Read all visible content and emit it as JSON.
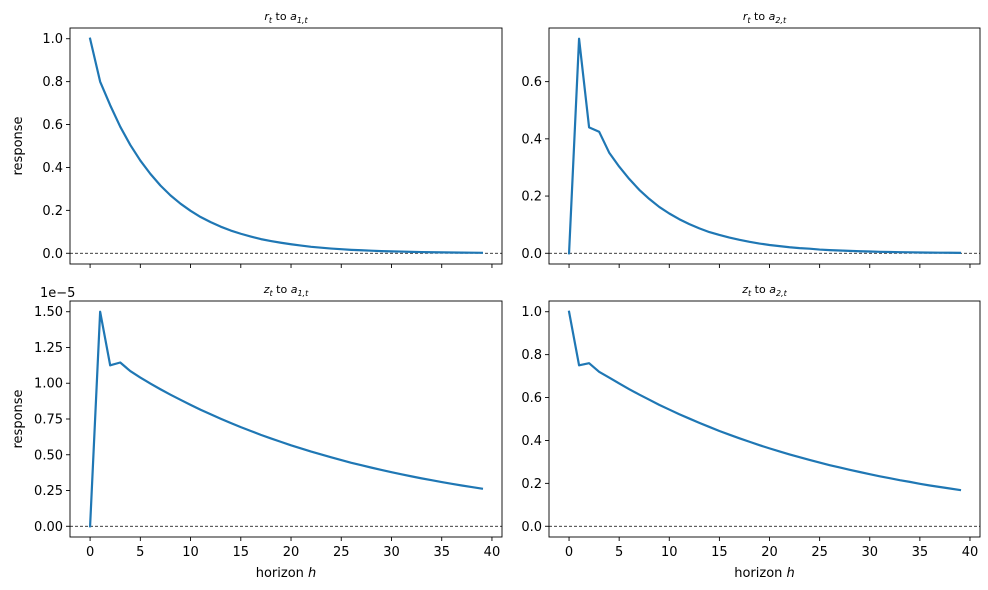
{
  "chart_data": [
    {
      "type": "line",
      "title": "r_t to a_{1,t}",
      "title_parts": {
        "var": "r",
        "var_sub": "t",
        "word": "to",
        "shock": "a",
        "shock_sub": "1,t"
      },
      "xlabel": "",
      "ylabel": "response",
      "xlim": [
        -2,
        41
      ],
      "ylim": [
        -0.05,
        1.05
      ],
      "xticks": [
        0,
        5,
        10,
        15,
        20,
        25,
        30,
        35,
        40
      ],
      "xtick_labels_shown": false,
      "yticks": [
        0.0,
        0.2,
        0.4,
        0.6,
        0.8,
        1.0
      ],
      "ytick_labels": [
        "0.0",
        "0.2",
        "0.4",
        "0.6",
        "0.8",
        "1.0"
      ],
      "zero_line": true,
      "grid": false,
      "series_color": "#1f77b4",
      "x": [
        0,
        1,
        2,
        3,
        4,
        5,
        6,
        7,
        8,
        9,
        10,
        11,
        12,
        13,
        14,
        15,
        16,
        17,
        18,
        19,
        20,
        21,
        22,
        23,
        24,
        25,
        26,
        27,
        28,
        29,
        30,
        31,
        32,
        33,
        34,
        35,
        36,
        37,
        38,
        39
      ],
      "values": [
        1.0,
        0.8,
        0.69,
        0.59,
        0.505,
        0.432,
        0.37,
        0.316,
        0.27,
        0.231,
        0.198,
        0.169,
        0.145,
        0.124,
        0.106,
        0.091,
        0.078,
        0.066,
        0.057,
        0.049,
        0.042,
        0.036,
        0.03,
        0.026,
        0.022,
        0.019,
        0.016,
        0.014,
        0.012,
        0.01,
        0.009,
        0.008,
        0.0065,
        0.0056,
        0.0048,
        0.0041,
        0.0035,
        0.003,
        0.0026,
        0.0022
      ]
    },
    {
      "type": "line",
      "title": "r_t to a_{2,t}",
      "title_parts": {
        "var": "r",
        "var_sub": "t",
        "word": "to",
        "shock": "a",
        "shock_sub": "2,t"
      },
      "xlabel": "",
      "ylabel": "",
      "xlim": [
        -2,
        41
      ],
      "ylim": [
        -0.0375,
        0.7875
      ],
      "xticks": [
        0,
        5,
        10,
        15,
        20,
        25,
        30,
        35,
        40
      ],
      "xtick_labels_shown": false,
      "yticks": [
        0.0,
        0.2,
        0.4,
        0.6
      ],
      "ytick_labels": [
        "0.0",
        "0.2",
        "0.4",
        "0.6"
      ],
      "zero_line": true,
      "grid": false,
      "series_color": "#1f77b4",
      "x": [
        0,
        1,
        2,
        3,
        4,
        5,
        6,
        7,
        8,
        9,
        10,
        11,
        12,
        13,
        14,
        15,
        16,
        17,
        18,
        19,
        20,
        21,
        22,
        23,
        24,
        25,
        26,
        27,
        28,
        29,
        30,
        31,
        32,
        33,
        34,
        35,
        36,
        37,
        38,
        39
      ],
      "values": [
        0.0,
        0.75,
        0.44,
        0.425,
        0.352,
        0.303,
        0.26,
        0.222,
        0.19,
        0.162,
        0.139,
        0.119,
        0.102,
        0.087,
        0.074,
        0.064,
        0.055,
        0.047,
        0.04,
        0.034,
        0.029,
        0.025,
        0.021,
        0.018,
        0.016,
        0.013,
        0.011,
        0.0097,
        0.0083,
        0.0071,
        0.0061,
        0.0052,
        0.0045,
        0.0038,
        0.0033,
        0.0028,
        0.0024,
        0.0021,
        0.0018,
        0.0015
      ]
    },
    {
      "type": "line",
      "title": "z_t to a_{1,t}",
      "title_parts": {
        "var": "z",
        "var_sub": "t",
        "word": "to",
        "shock": "a",
        "shock_sub": "1,t"
      },
      "xlabel": "horizon h",
      "xlabel_parts": {
        "text": "horizon",
        "var": "h"
      },
      "ylabel": "response",
      "offset_text": "1e−5",
      "xlim": [
        -2,
        41
      ],
      "ylim": [
        -0.075,
        1.575
      ],
      "xticks": [
        0,
        5,
        10,
        15,
        20,
        25,
        30,
        35,
        40
      ],
      "xtick_labels": [
        "0",
        "5",
        "10",
        "15",
        "20",
        "25",
        "30",
        "35",
        "40"
      ],
      "xtick_labels_shown": true,
      "yticks": [
        0.0,
        0.25,
        0.5,
        0.75,
        1.0,
        1.25,
        1.5
      ],
      "ytick_labels": [
        "0.00",
        "0.25",
        "0.50",
        "0.75",
        "1.00",
        "1.25",
        "1.50"
      ],
      "zero_line": true,
      "grid": false,
      "series_color": "#1f77b4",
      "x": [
        0,
        1,
        2,
        3,
        4,
        5,
        6,
        7,
        8,
        9,
        10,
        11,
        12,
        13,
        14,
        15,
        16,
        17,
        18,
        19,
        20,
        21,
        22,
        23,
        24,
        25,
        26,
        27,
        28,
        29,
        30,
        31,
        32,
        33,
        34,
        35,
        36,
        37,
        38,
        39
      ],
      "values": [
        0.0,
        1.5,
        1.125,
        1.145,
        1.085,
        1.04,
        0.998,
        0.958,
        0.92,
        0.884,
        0.849,
        0.815,
        0.783,
        0.752,
        0.722,
        0.693,
        0.666,
        0.639,
        0.614,
        0.59,
        0.566,
        0.544,
        0.522,
        0.502,
        0.482,
        0.463,
        0.444,
        0.427,
        0.41,
        0.394,
        0.378,
        0.363,
        0.349,
        0.335,
        0.322,
        0.309,
        0.297,
        0.285,
        0.274,
        0.263
      ]
    },
    {
      "type": "line",
      "title": "z_t to a_{2,t}",
      "title_parts": {
        "var": "z",
        "var_sub": "t",
        "word": "to",
        "shock": "a",
        "shock_sub": "2,t"
      },
      "xlabel": "horizon h",
      "xlabel_parts": {
        "text": "horizon",
        "var": "h"
      },
      "ylabel": "",
      "xlim": [
        -2,
        41
      ],
      "ylim": [
        -0.05,
        1.05
      ],
      "xticks": [
        0,
        5,
        10,
        15,
        20,
        25,
        30,
        35,
        40
      ],
      "xtick_labels": [
        "0",
        "5",
        "10",
        "15",
        "20",
        "25",
        "30",
        "35",
        "40"
      ],
      "xtick_labels_shown": true,
      "yticks": [
        0.0,
        0.2,
        0.4,
        0.6,
        0.8,
        1.0
      ],
      "ytick_labels": [
        "0.0",
        "0.2",
        "0.4",
        "0.6",
        "0.8",
        "1.0"
      ],
      "zero_line": true,
      "grid": false,
      "series_color": "#1f77b4",
      "x": [
        0,
        1,
        2,
        3,
        4,
        5,
        6,
        7,
        8,
        9,
        10,
        11,
        12,
        13,
        14,
        15,
        16,
        17,
        18,
        19,
        20,
        21,
        22,
        23,
        24,
        25,
        26,
        27,
        28,
        29,
        30,
        31,
        32,
        33,
        34,
        35,
        36,
        37,
        38,
        39
      ],
      "values": [
        1.0,
        0.75,
        0.76,
        0.72,
        0.693,
        0.666,
        0.639,
        0.614,
        0.59,
        0.566,
        0.544,
        0.522,
        0.502,
        0.482,
        0.463,
        0.444,
        0.427,
        0.41,
        0.394,
        0.378,
        0.363,
        0.349,
        0.335,
        0.322,
        0.309,
        0.297,
        0.285,
        0.274,
        0.263,
        0.253,
        0.243,
        0.233,
        0.224,
        0.215,
        0.207,
        0.198,
        0.19,
        0.183,
        0.176,
        0.169
      ]
    }
  ]
}
